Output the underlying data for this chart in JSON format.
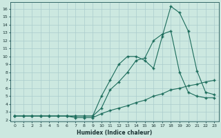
{
  "title": "",
  "xlabel": "Humidex (Indice chaleur)",
  "ylabel": "",
  "bg_color": "#cce8e0",
  "grid_color": "#aacccc",
  "line_color": "#1a6b5a",
  "xlim": [
    -0.5,
    23.5
  ],
  "ylim": [
    1.8,
    16.8
  ],
  "xticks": [
    0,
    1,
    2,
    3,
    4,
    5,
    6,
    7,
    8,
    9,
    10,
    11,
    12,
    13,
    14,
    15,
    16,
    17,
    18,
    19,
    20,
    21,
    22,
    23
  ],
  "yticks": [
    2,
    3,
    4,
    5,
    6,
    7,
    8,
    9,
    10,
    11,
    12,
    13,
    14,
    15,
    16
  ],
  "series1_x": [
    0,
    1,
    2,
    3,
    4,
    5,
    6,
    7,
    8,
    9,
    10,
    11,
    12,
    13,
    14,
    15,
    16,
    17,
    18,
    19,
    20,
    21,
    22,
    23
  ],
  "series1_y": [
    2.5,
    2.5,
    2.5,
    2.5,
    2.5,
    2.5,
    2.5,
    2.5,
    2.5,
    2.5,
    5.0,
    7.0,
    9.0,
    10.0,
    10.0,
    9.5,
    8.5,
    12.5,
    16.3,
    15.5,
    13.2,
    8.2,
    5.5,
    5.2
  ],
  "series2_x": [
    0,
    1,
    2,
    3,
    4,
    5,
    6,
    7,
    8,
    9,
    10,
    11,
    12,
    13,
    14,
    15,
    16,
    17,
    18,
    19,
    20,
    21,
    22,
    23
  ],
  "series2_y": [
    2.5,
    2.5,
    2.5,
    2.5,
    2.5,
    2.5,
    2.5,
    2.5,
    2.5,
    2.5,
    3.5,
    5.8,
    6.8,
    8.0,
    9.5,
    9.8,
    12.0,
    12.8,
    13.2,
    8.0,
    5.5,
    5.0,
    4.8,
    4.8
  ],
  "series3_x": [
    0,
    1,
    2,
    3,
    4,
    5,
    6,
    7,
    8,
    9,
    10,
    11,
    12,
    13,
    14,
    15,
    16,
    17,
    18,
    19,
    20,
    21,
    22,
    23
  ],
  "series3_y": [
    2.5,
    2.5,
    2.5,
    2.5,
    2.5,
    2.5,
    2.5,
    2.3,
    2.3,
    2.3,
    2.8,
    3.2,
    3.5,
    3.8,
    4.2,
    4.5,
    5.0,
    5.3,
    5.8,
    6.0,
    6.3,
    6.5,
    6.8,
    7.0
  ],
  "marker": "+",
  "markersize": 3.0,
  "linewidth": 0.8,
  "tick_fontsize": 4.5,
  "xlabel_fontsize": 5.5
}
